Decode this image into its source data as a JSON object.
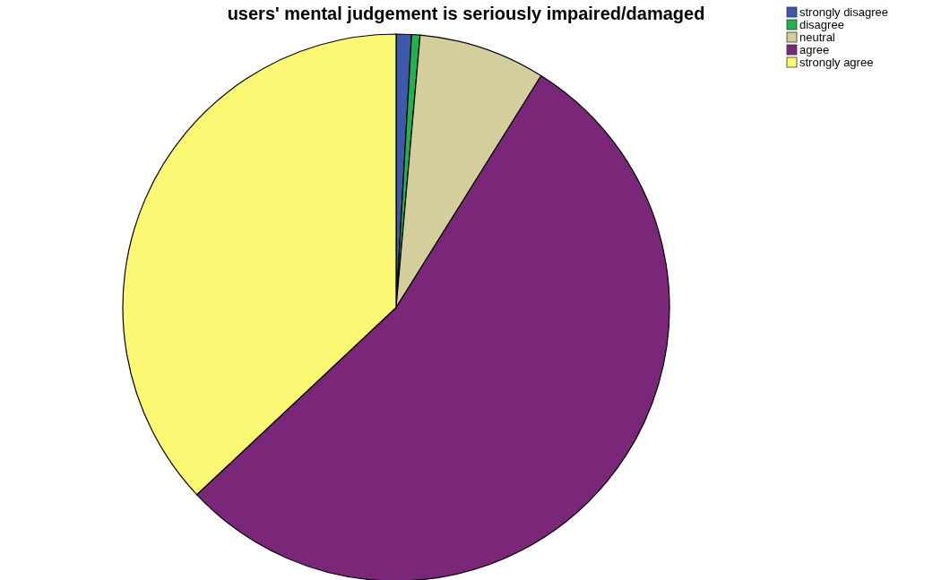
{
  "chart_data": {
    "type": "pie",
    "title": "users' mental judgement is seriously impaired/damaged",
    "categories": [
      "strongly disagree",
      "disagree",
      "neutral",
      "agree",
      "strongly agree"
    ],
    "values": [
      0.9,
      0.5,
      7.5,
      54.1,
      37.0
    ],
    "colors": [
      "#3e58ac",
      "#22b14c",
      "#d3ce9c",
      "#7b2779",
      "#fbf873"
    ],
    "legend": "top right"
  }
}
